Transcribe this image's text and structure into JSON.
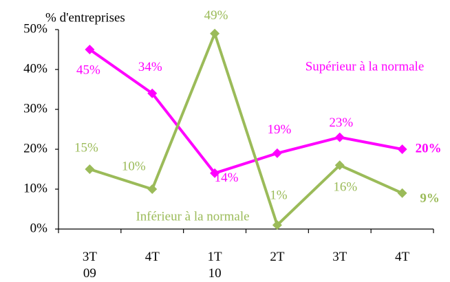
{
  "chart_data": {
    "type": "line",
    "y_label": "% d'entreprises",
    "categories": [
      "3T\n09",
      "4T",
      "1T\n10",
      "2T",
      "3T",
      "4T"
    ],
    "series": [
      {
        "name": "Supérieur à la normale",
        "color": "#ff00ff",
        "values": [
          45,
          34,
          14,
          19,
          23,
          20
        ],
        "value_labels": [
          "45%",
          "34%",
          "14%",
          "19%",
          "23%",
          "20%"
        ]
      },
      {
        "name": "Inférieur à la normale",
        "color": "#9bbb59",
        "values": [
          15,
          10,
          49,
          1,
          16,
          9
        ],
        "value_labels": [
          "15%",
          "10%",
          "49%",
          "1%",
          "16%",
          "9%"
        ]
      }
    ],
    "ylim": [
      0,
      50
    ],
    "yticks": [
      {
        "value": 0,
        "label": "0%"
      },
      {
        "value": 10,
        "label": "10%"
      },
      {
        "value": 20,
        "label": "20%"
      },
      {
        "value": 30,
        "label": "30%"
      },
      {
        "value": 40,
        "label": "40%"
      },
      {
        "value": 50,
        "label": "50%"
      }
    ]
  }
}
